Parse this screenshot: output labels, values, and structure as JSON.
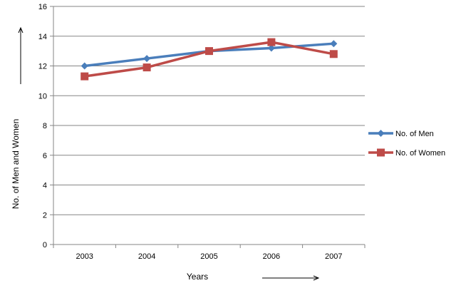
{
  "chart_data": {
    "type": "line",
    "categories": [
      "2003",
      "2004",
      "2005",
      "2006",
      "2007"
    ],
    "series": [
      {
        "name": "No. of Men",
        "values": [
          12,
          12.5,
          13,
          13.2,
          13.5
        ],
        "color": "#4A7EBB",
        "marker": "diamond"
      },
      {
        "name": "No. of Women",
        "values": [
          11.3,
          11.9,
          13,
          13.6,
          12.8
        ],
        "color": "#BE4B48",
        "marker": "square"
      }
    ],
    "xlabel": "Years",
    "ylabel": "No. of Men and Women",
    "ylim": [
      0,
      16
    ],
    "yticks": [
      0,
      2,
      4,
      6,
      8,
      10,
      12,
      14,
      16
    ],
    "grid": true,
    "legend": "right"
  }
}
